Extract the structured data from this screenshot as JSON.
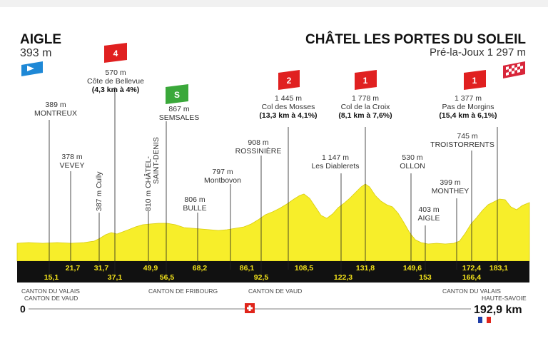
{
  "start": {
    "name": "AIGLE",
    "altitude": "393 m"
  },
  "finish": {
    "name": "CHÂTEL LES PORTES DU SOLEIL",
    "sub": "Pré-la-Joux 1 297 m"
  },
  "landmarks": [
    {
      "id": "montreux",
      "line1": "389 m",
      "line2": "MONTREUX"
    },
    {
      "id": "vevey",
      "line1": "378 m",
      "line2": "VEVEY"
    },
    {
      "id": "cully",
      "line1": "387 m Cully"
    },
    {
      "id": "cote-bellevue",
      "line1": "570 m",
      "line2": "Côte de Bellevue",
      "line3": "(4,3 km à 4%)"
    },
    {
      "id": "chatel-st-denis",
      "line1": "810 m CHÂTEL-",
      "line2": "SAINT-DENIS"
    },
    {
      "id": "semsales",
      "line1": "867 m",
      "line2": "SEMSALES"
    },
    {
      "id": "bulle",
      "line1": "806 m",
      "line2": "BULLE"
    },
    {
      "id": "montbovon",
      "line1": "797 m",
      "line2": "Montbovon"
    },
    {
      "id": "rossiniere",
      "line1": "908 m",
      "line2": "ROSSINIÈRE"
    },
    {
      "id": "col-mosses",
      "line1": "1 445 m",
      "line2": "Col des Mosses",
      "line3": "(13,3 km à 4,1%)"
    },
    {
      "id": "diablerets",
      "line1": "1 147 m",
      "line2": "Les Diablerets"
    },
    {
      "id": "col-croix",
      "line1": "1 778 m",
      "line2": "Col de la Croix",
      "line3": "(8,1 km à 7,6%)"
    },
    {
      "id": "ollon",
      "line1": "530 m",
      "line2": "OLLON"
    },
    {
      "id": "aigle2",
      "line1": "403 m",
      "line2": "AIGLE"
    },
    {
      "id": "monthey",
      "line1": "399 m",
      "line2": "MONTHEY"
    },
    {
      "id": "troistorrents",
      "line1": "745 m",
      "line2": "TROISTORRENTS"
    },
    {
      "id": "pas-morgins",
      "line1": "1 377 m",
      "line2": "Pas de Morgins",
      "line3": "(15,4 km à 6,1%)"
    }
  ],
  "climb_badges": [
    {
      "id": "cote-bellevue",
      "category": "4",
      "color": "#e02020"
    },
    {
      "id": "col-mosses",
      "category": "2",
      "color": "#e02020"
    },
    {
      "id": "col-croix",
      "category": "1",
      "color": "#e02020"
    },
    {
      "id": "pas-morgins",
      "category": "1",
      "color": "#e02020"
    }
  ],
  "sprint_badge": {
    "label": "S",
    "color": "#3aa83a"
  },
  "km_top": [
    "21,7",
    "31,7",
    "49,9",
    "68,2",
    "86,1",
    "108,5",
    "131,8",
    "149,6",
    "172,4",
    "183,1"
  ],
  "km_bottom": [
    "15,1",
    "37,1",
    "56,5",
    "92,5",
    "122,3",
    "153",
    "166,4"
  ],
  "cantons": {
    "left1": "CANTON DU VALAIS",
    "left2": "CANTON DE VAUD",
    "fribourg": "CANTON DE FRIBOURG",
    "vaud": "CANTON DE VAUD",
    "valais_right": "CANTON DU VALAIS",
    "haute_savoie": "HAUTE-SAVOIE"
  },
  "distance": {
    "start": "0",
    "end": "192,9 km"
  },
  "colors": {
    "profile": "#f7ee2a",
    "band": "#111111",
    "km_text": "#f2e21a"
  },
  "icons": [
    "start-flag-icon",
    "finish-flag-icon",
    "swiss-flag-icon",
    "french-flag-icon"
  ]
}
